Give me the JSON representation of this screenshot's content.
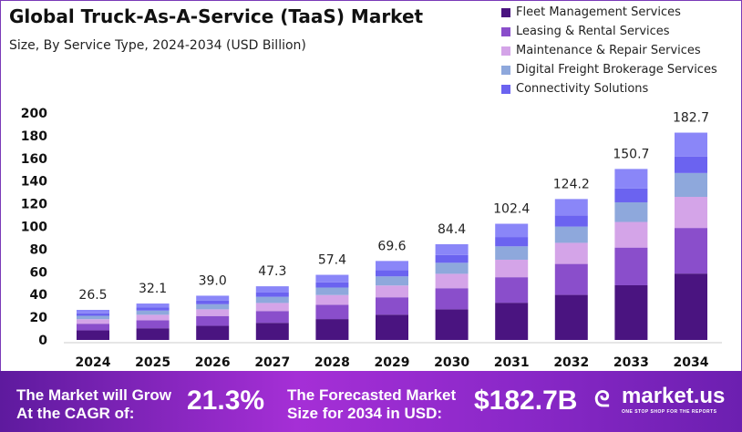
{
  "chart_data": {
    "type": "bar",
    "stacked": true,
    "title": "Global Truck-As-A-Service (TaaS) Market",
    "subtitle": "Size, By Service Type, 2024-2034 (USD Billion)",
    "categories": [
      "2024",
      "2025",
      "2026",
      "2027",
      "2028",
      "2029",
      "2030",
      "2031",
      "2032",
      "2033",
      "2034"
    ],
    "totals": [
      26.5,
      32.1,
      39.0,
      47.3,
      57.4,
      69.6,
      84.4,
      102.4,
      124.2,
      150.7,
      182.7
    ],
    "totals_labels": [
      "26.5",
      "32.1",
      "39.0",
      "47.3",
      "57.4",
      "69.6",
      "84.4",
      "102.4",
      "124.2",
      "150.7",
      "182.7"
    ],
    "series": [
      {
        "name": "Fleet Management Services",
        "color": "#4a1480",
        "values": [
          8.5,
          10.3,
          12.5,
          15.1,
          18.4,
          22.3,
          27.0,
          32.8,
          39.7,
          48.2,
          58.5
        ]
      },
      {
        "name": "Leasing & Rental Services",
        "color": "#8a4ecb",
        "values": [
          5.8,
          7.1,
          8.6,
          10.4,
          12.6,
          15.3,
          18.6,
          22.5,
          27.3,
          33.2,
          40.2
        ]
      },
      {
        "name": "Maintenance & Repair Services",
        "color": "#d4a4e8",
        "values": [
          4.0,
          4.8,
          5.9,
          7.1,
          8.6,
          10.4,
          12.7,
          15.4,
          18.6,
          22.6,
          27.4
        ]
      },
      {
        "name": "Digital Freight Brokerage Services",
        "color": "#8ea8dc",
        "values": [
          3.0,
          3.7,
          4.5,
          5.4,
          6.6,
          8.0,
          9.7,
          11.8,
          14.3,
          17.3,
          21.0
        ]
      },
      {
        "name": "Connectivity Solutions",
        "color": "#6b63f0",
        "values": [
          2.1,
          2.6,
          3.1,
          3.8,
          4.6,
          5.6,
          6.8,
          8.2,
          9.9,
          12.1,
          14.6
        ]
      },
      {
        "color": "#8a86f8",
        "values": [
          3.1,
          3.6,
          4.4,
          5.5,
          6.6,
          8.0,
          9.6,
          11.7,
          14.4,
          17.3,
          21.0
        ]
      }
    ],
    "ylim": [
      0,
      200
    ],
    "yticks": [
      "0",
      "20",
      "40",
      "60",
      "80",
      "100",
      "120",
      "140",
      "160",
      "180",
      "200"
    ],
    "grid": false,
    "legend": "top-right"
  },
  "banner": {
    "cagr_text_1": "The Market will Grow",
    "cagr_text_2": "At the CAGR of:",
    "cagr_value": "21.3%",
    "forecast_text_1": "The Forecasted Market",
    "forecast_text_2": "Size for 2034 in USD:",
    "forecast_value": "$182.7B",
    "brand": "market.us",
    "brand_tagline": "ONE STOP SHOP FOR THE REPORTS"
  }
}
